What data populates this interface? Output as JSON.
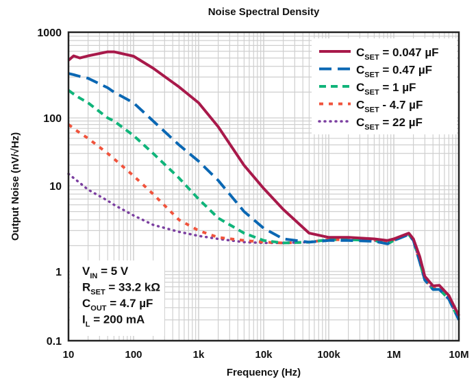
{
  "chart_data": {
    "type": "line",
    "title": "Noise Spectral Density",
    "xlabel": "Frequency (Hz)",
    "ylabel": "Output Noise (nV/√Hz)",
    "xscale": "log",
    "yscale": "log",
    "xlim": [
      10,
      10000000
    ],
    "ylim": [
      0.1,
      1000
    ],
    "xticks": [
      {
        "v": 10,
        "label": "10"
      },
      {
        "v": 100,
        "label": "100"
      },
      {
        "v": 1000,
        "label": "1k"
      },
      {
        "v": 10000,
        "label": "10k"
      },
      {
        "v": 100000,
        "label": "100k"
      },
      {
        "v": 1000000,
        "label": "1M"
      },
      {
        "v": 10000000,
        "label": "10M"
      }
    ],
    "yticks": [
      {
        "v": 1000,
        "label": "1000"
      },
      {
        "v": 100,
        "label": "100"
      },
      {
        "v": 10,
        "label": "10"
      },
      {
        "v": 1,
        "label": "1"
      },
      {
        "v": 0.1,
        "label": "0.1"
      }
    ],
    "grid": true,
    "legend_position": "top-right",
    "x": [
      10,
      12,
      15,
      20,
      40,
      50,
      100,
      200,
      500,
      1000,
      2000,
      5000,
      10000,
      20000,
      50000,
      100000,
      200000,
      500000,
      800000,
      1000000,
      1700000,
      2000000,
      2500000,
      3000000,
      4000000,
      5000000,
      7000000,
      10000000
    ],
    "series": [
      {
        "name": "C_SET = 0.047 µF",
        "legend": {
          "main": "C",
          "sub": "SET",
          "rest": " = 0.047 µF"
        },
        "color": "#a8194a",
        "dash": "solid",
        "values": [
          470,
          530,
          500,
          530,
          590,
          590,
          525,
          380,
          230,
          150,
          74,
          20,
          9.3,
          5.3,
          2.8,
          2.5,
          2.5,
          2.4,
          2.3,
          2.4,
          2.8,
          2.4,
          1.5,
          0.85,
          0.62,
          0.63,
          0.45,
          0.23
        ]
      },
      {
        "name": "C_SET = 0.47 µF",
        "legend": {
          "main": "C",
          "sub": "SET",
          "rest": " = 0.47 µF"
        },
        "color": "#0a67b3",
        "dash": "long",
        "values": [
          330,
          320,
          305,
          290,
          225,
          200,
          150,
          90,
          40,
          23,
          12,
          5,
          3.2,
          2.4,
          2.2,
          2.3,
          2.3,
          2.25,
          2.1,
          2.3,
          2.7,
          2.3,
          1.3,
          0.75,
          0.55,
          0.55,
          0.4,
          0.2
        ]
      },
      {
        "name": "C_SET = 1 µF",
        "legend": {
          "main": "C",
          "sub": "SET",
          "rest": " = 1 µF"
        },
        "color": "#10b47a",
        "dash": "medium",
        "values": [
          210,
          190,
          170,
          150,
          100,
          90,
          55,
          30,
          13,
          7,
          4.2,
          2.8,
          2.3,
          2.15,
          2.2,
          2.35,
          2.35,
          2.3,
          2.1,
          2.3,
          2.7,
          2.3,
          1.3,
          0.75,
          0.55,
          0.55,
          0.4,
          0.2
        ]
      },
      {
        "name": "C_SET - 4.7 µF",
        "legend": {
          "main": "C",
          "sub": "SET",
          "rest": " - 4.7 µF"
        },
        "color": "#f0533c",
        "dash": "short",
        "values": [
          80,
          70,
          60,
          50,
          30,
          25,
          14,
          8,
          4,
          3,
          2.5,
          2.3,
          2.2,
          2.15,
          2.2,
          2.35,
          2.35,
          2.35,
          2.2,
          2.35,
          2.7,
          2.3,
          1.3,
          0.75,
          0.57,
          0.58,
          0.45,
          0.22
        ]
      },
      {
        "name": "C_SET = 22 µF",
        "legend": {
          "main": "C",
          "sub": "SET",
          "rest": " = 22 µF"
        },
        "color": "#7b3fa0",
        "dash": "dot",
        "values": [
          15,
          13,
          11,
          9,
          6.7,
          6,
          4.5,
          3.5,
          2.9,
          2.6,
          2.4,
          2.2,
          2.15,
          2.15,
          2.2,
          2.35,
          2.35,
          2.3,
          2.1,
          2.3,
          2.7,
          2.3,
          1.3,
          0.75,
          0.55,
          0.55,
          0.4,
          0.2
        ]
      }
    ],
    "annotations": [
      {
        "main": "V",
        "sub": "IN",
        "rest": " = 5 V"
      },
      {
        "main": "R",
        "sub": "SET",
        "rest": " = 33.2 kΩ"
      },
      {
        "main": "C",
        "sub": "OUT",
        "rest": " = 4.7 µF"
      },
      {
        "main": "I",
        "sub": "L",
        "rest": " = 200 mA"
      }
    ]
  }
}
